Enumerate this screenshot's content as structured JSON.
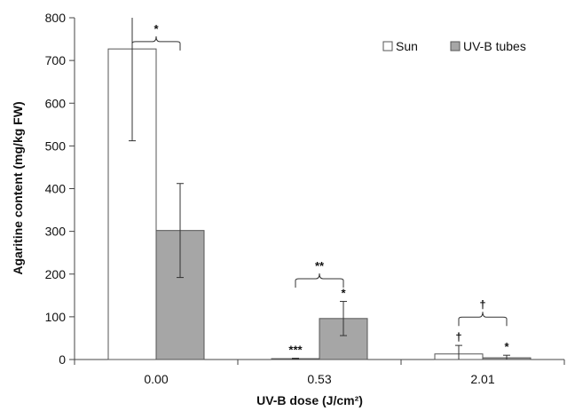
{
  "chart_data": {
    "type": "bar",
    "categories": [
      "0.00",
      "0.53",
      "2.01"
    ],
    "xlabel": "UV-B dose (J/cm²)",
    "ylabel": "Agaritine content (mg/kg FW)",
    "ylim": [
      0,
      800
    ],
    "yticks": [
      "0",
      "100",
      "200",
      "300",
      "400",
      "500",
      "600",
      "700",
      "800"
    ],
    "grid": false,
    "legend_position": "top-right",
    "series": [
      {
        "name": "Sun",
        "color": "#ffffff",
        "values": [
          727,
          2,
          13
        ],
        "error": [
          215,
          1,
          20
        ],
        "marks": [
          "",
          "***",
          "†"
        ]
      },
      {
        "name": "UV-B tubes",
        "color": "#a6a6a6",
        "values": [
          302,
          96,
          4
        ],
        "error": [
          110,
          40,
          6
        ],
        "marks": [
          "",
          "*",
          "*"
        ]
      }
    ],
    "brackets": [
      {
        "category": 0,
        "label": "*",
        "y": 740
      },
      {
        "category": 1,
        "label": "**",
        "y": 185
      },
      {
        "category": 2,
        "label": "†",
        "y": 95
      }
    ]
  }
}
